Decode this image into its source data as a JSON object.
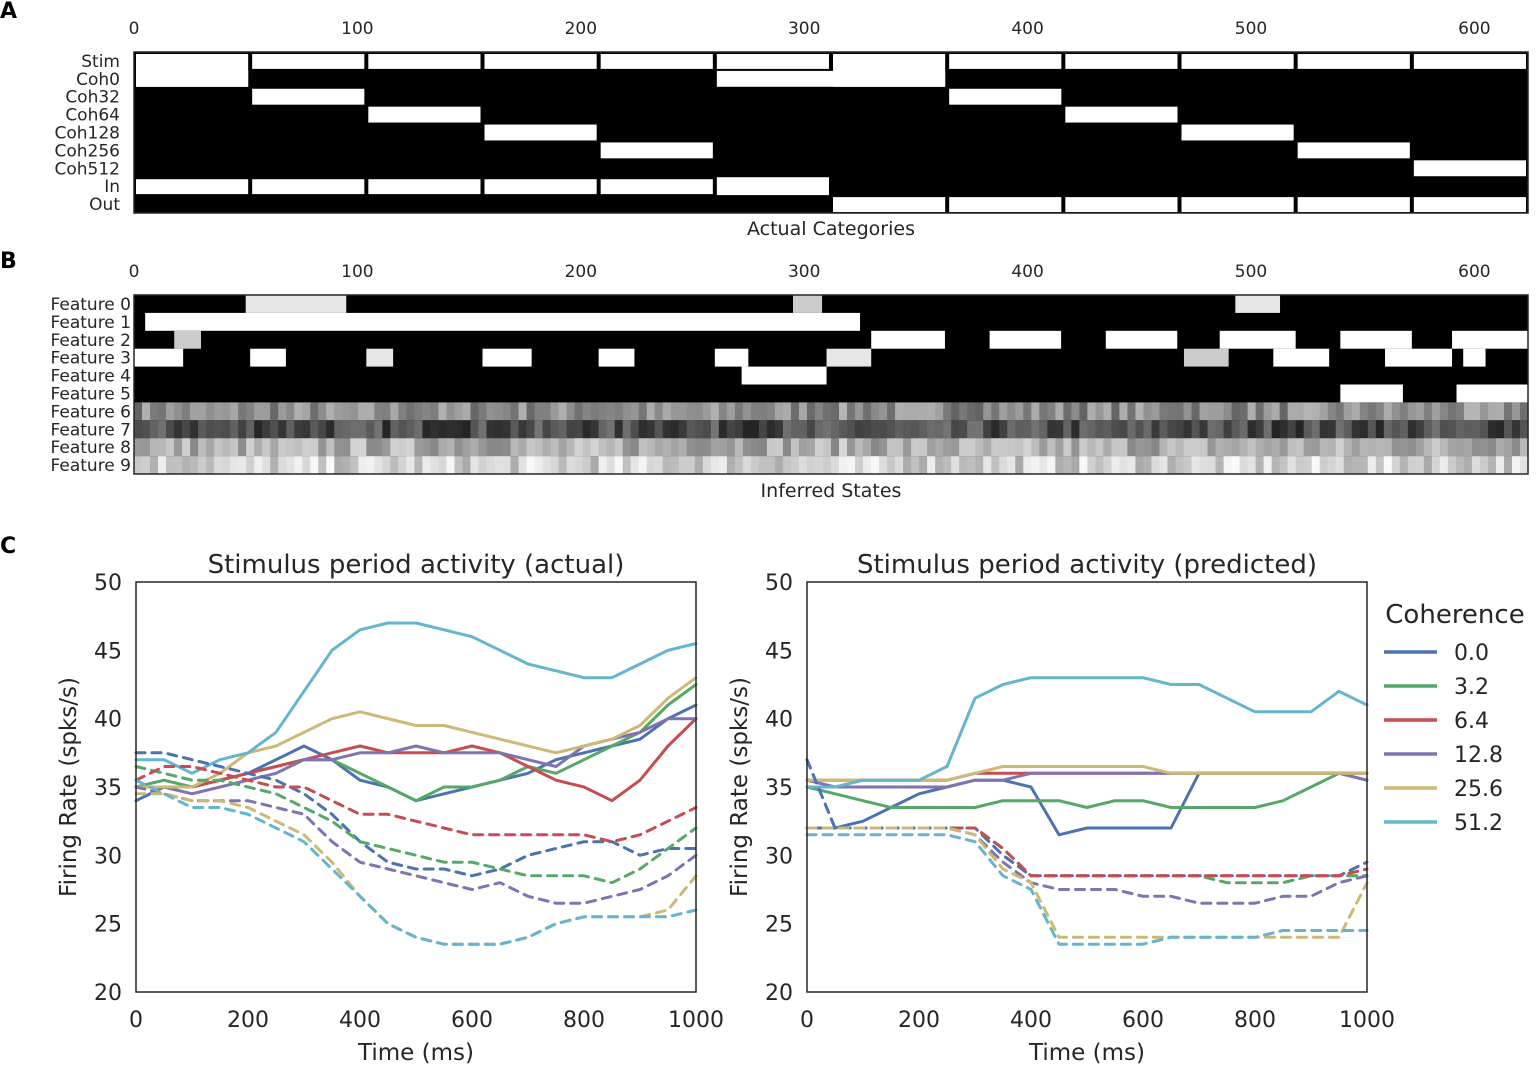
{
  "panel_labels": [
    "A",
    "B",
    "C"
  ],
  "chart_data": [
    {
      "type": "heatmap",
      "panel": "A",
      "xlabel": "Actual Categories",
      "xticks": [
        0,
        100,
        200,
        300,
        400,
        500,
        600
      ],
      "xlim": [
        0,
        624
      ],
      "rows": [
        "Stim",
        "Coh0",
        "Coh32",
        "Coh64",
        "Coh128",
        "Coh256",
        "Coh512",
        "In",
        "Out"
      ],
      "trial_boundaries": [
        0,
        52,
        104,
        156,
        208,
        260,
        312,
        364,
        416,
        468,
        520,
        572,
        624
      ],
      "trial_coherence_row": [
        1,
        2,
        3,
        4,
        5,
        1,
        2,
        3,
        4,
        5,
        6
      ],
      "trial_boundaries_coherence": [
        0,
        52,
        104,
        156,
        208,
        260,
        364,
        416,
        468,
        520,
        572,
        624
      ],
      "in_until": 312
    },
    {
      "type": "heatmap",
      "panel": "B",
      "xlabel": "Inferred States",
      "xticks": [
        0,
        100,
        200,
        300,
        400,
        500,
        600
      ],
      "xlim": [
        0,
        624
      ],
      "rows": [
        "Feature 0",
        "Feature 1",
        "Feature 2",
        "Feature 3",
        "Feature 4",
        "Feature 5",
        "Feature 6",
        "Feature 7",
        "Feature 8",
        "Feature 9"
      ],
      "active_segments": [
        [
          [
            50,
            95,
            0.9
          ],
          [
            295,
            308,
            0.8
          ],
          [
            493,
            513,
            0.9
          ]
        ],
        [
          [
            5,
            325,
            1.0
          ]
        ],
        [
          [
            18,
            30,
            0.8
          ],
          [
            330,
            363,
            1.0
          ],
          [
            383,
            415,
            1.0
          ],
          [
            435,
            467,
            1.0
          ],
          [
            486,
            520,
            1.0
          ],
          [
            540,
            572,
            1.0
          ],
          [
            590,
            624,
            1.0
          ]
        ],
        [
          [
            0,
            22,
            1.0
          ],
          [
            52,
            68,
            1.0
          ],
          [
            104,
            116,
            0.9
          ],
          [
            156,
            178,
            1.0
          ],
          [
            208,
            224,
            1.0
          ],
          [
            260,
            275,
            1.0
          ],
          [
            310,
            330,
            0.9
          ],
          [
            470,
            490,
            0.8
          ],
          [
            510,
            535,
            1.0
          ],
          [
            560,
            590,
            1.0
          ],
          [
            595,
            605,
            1.0
          ]
        ],
        [
          [
            272,
            310,
            1.0
          ]
        ],
        [
          [
            540,
            568,
            1.0
          ],
          [
            592,
            624,
            1.0
          ]
        ]
      ],
      "noisy_row_means": [
        0.55,
        0.3,
        0.68,
        0.82
      ]
    },
    {
      "type": "line",
      "panel": "C-left",
      "title": "Stimulus period activity (actual)",
      "xlabel": "Time (ms)",
      "ylabel": "Firing Rate (spks/s)",
      "xlim": [
        0,
        1000
      ],
      "ylim": [
        20,
        50
      ],
      "xticks": [
        0,
        200,
        400,
        600,
        800,
        1000
      ],
      "yticks": [
        20,
        25,
        30,
        35,
        40,
        45,
        50
      ],
      "x": [
        0,
        50,
        100,
        150,
        200,
        250,
        300,
        350,
        400,
        450,
        500,
        550,
        600,
        650,
        700,
        750,
        800,
        850,
        900,
        950,
        1000
      ],
      "series": [
        {
          "name": "0.0",
          "color": "#4C72B0",
          "style": "solid",
          "values": [
            34,
            35,
            35,
            35.5,
            36,
            37,
            38,
            37,
            35.5,
            35,
            34,
            34.5,
            35,
            35.5,
            36,
            37,
            37.5,
            38,
            38.5,
            40,
            41
          ]
        },
        {
          "name": "3.2",
          "color": "#55A868",
          "style": "solid",
          "values": [
            35,
            35.5,
            35,
            35.5,
            36,
            36.5,
            37,
            37,
            36,
            35,
            34,
            35,
            35,
            35.5,
            36.5,
            36,
            37,
            38,
            39,
            41,
            42.5
          ]
        },
        {
          "name": "6.4",
          "color": "#C44E52",
          "style": "solid",
          "values": [
            35,
            35,
            35,
            35.5,
            36,
            36.5,
            37,
            37.5,
            38,
            37.5,
            37.5,
            37.5,
            38,
            37.5,
            36.5,
            35.5,
            35,
            34,
            35.5,
            38,
            40
          ]
        },
        {
          "name": "12.8",
          "color": "#8172B2",
          "style": "solid",
          "values": [
            35,
            35,
            34.5,
            35,
            35.5,
            36,
            37,
            37,
            37.5,
            37.5,
            38,
            37.5,
            37.5,
            37.5,
            37,
            36.5,
            38,
            38.5,
            39,
            40,
            40
          ]
        },
        {
          "name": "25.6",
          "color": "#CCB974",
          "style": "solid",
          "values": [
            35,
            35,
            35,
            36,
            37.5,
            38,
            39,
            40,
            40.5,
            40,
            39.5,
            39.5,
            39,
            38.5,
            38,
            37.5,
            38,
            38.5,
            39.5,
            41.5,
            43
          ]
        },
        {
          "name": "51.2",
          "color": "#64B5CD",
          "style": "solid",
          "values": [
            37,
            37,
            36,
            37,
            37.5,
            39,
            42,
            45,
            46.5,
            47,
            47,
            46.5,
            46,
            45,
            44,
            43.5,
            43,
            43,
            44,
            45,
            45.5
          ]
        },
        {
          "name": "0.0",
          "color": "#4C72B0",
          "style": "dashed",
          "values": [
            37.5,
            37.5,
            37,
            36.5,
            36,
            35.5,
            34.5,
            33,
            31,
            29.5,
            29,
            29,
            28.5,
            29,
            30,
            30.5,
            31,
            31,
            30,
            30.5,
            30.5
          ]
        },
        {
          "name": "3.2",
          "color": "#55A868",
          "style": "dashed",
          "values": [
            36.5,
            36,
            35.5,
            35.5,
            35,
            34.5,
            33.5,
            32.5,
            31,
            30.5,
            30,
            29.5,
            29.5,
            29,
            28.5,
            28.5,
            28.5,
            28,
            29,
            30.5,
            32
          ]
        },
        {
          "name": "6.4",
          "color": "#C44E52",
          "style": "dashed",
          "values": [
            35.5,
            36.5,
            36.5,
            36,
            35.5,
            35,
            35,
            34,
            33,
            33,
            32.5,
            32,
            31.5,
            31.5,
            31.5,
            31.5,
            31.5,
            31,
            31.5,
            32.5,
            33.5
          ]
        },
        {
          "name": "12.8",
          "color": "#8172B2",
          "style": "dashed",
          "values": [
            35,
            34.5,
            34,
            34,
            34,
            33.5,
            33,
            31,
            29.5,
            29,
            28.5,
            28,
            27.5,
            28,
            27,
            26.5,
            26.5,
            27,
            27.5,
            28.5,
            30
          ]
        },
        {
          "name": "25.6",
          "color": "#CCB974",
          "style": "dashed",
          "values": [
            34.5,
            34.5,
            34,
            34,
            33.5,
            32.5,
            31.5,
            29.5,
            27,
            25,
            24,
            23.5,
            23.5,
            23.5,
            24,
            25,
            25.5,
            25.5,
            25.5,
            26,
            28.5
          ]
        },
        {
          "name": "51.2",
          "color": "#64B5CD",
          "style": "dashed",
          "values": [
            35.5,
            34.5,
            33.5,
            33.5,
            33,
            32,
            31,
            29,
            27,
            25,
            24,
            23.5,
            23.5,
            23.5,
            24,
            25,
            25.5,
            25.5,
            25.5,
            25.5,
            26
          ]
        }
      ]
    },
    {
      "type": "line",
      "panel": "C-right",
      "title": "Stimulus period activity (predicted)",
      "xlabel": "Time (ms)",
      "ylabel": "Firing Rate (spks/s)",
      "xlim": [
        0,
        1000
      ],
      "ylim": [
        20,
        50
      ],
      "xticks": [
        0,
        200,
        400,
        600,
        800,
        1000
      ],
      "yticks": [
        20,
        25,
        30,
        35,
        40,
        45,
        50
      ],
      "x": [
        0,
        50,
        100,
        150,
        200,
        250,
        300,
        350,
        400,
        450,
        500,
        550,
        600,
        650,
        700,
        750,
        800,
        850,
        900,
        950,
        1000
      ],
      "legend_title": "Coherence",
      "legend_position": "right",
      "series": [
        {
          "name": "0.0",
          "color": "#4C72B0",
          "style": "solid",
          "values": [
            32,
            32,
            32.5,
            33.5,
            34.5,
            35,
            35.5,
            35.5,
            35,
            31.5,
            32,
            32,
            32,
            32,
            36,
            36,
            36,
            36,
            36,
            36,
            36
          ]
        },
        {
          "name": "3.2",
          "color": "#55A868",
          "style": "solid",
          "values": [
            35,
            34.5,
            34,
            33.5,
            33.5,
            33.5,
            33.5,
            34,
            34,
            34,
            33.5,
            34,
            34,
            33.5,
            33.5,
            33.5,
            33.5,
            34,
            35,
            36,
            35.5
          ]
        },
        {
          "name": "6.4",
          "color": "#C44E52",
          "style": "solid",
          "values": [
            35.5,
            35.5,
            35.5,
            35.5,
            35.5,
            35.5,
            36,
            36,
            36,
            36,
            36,
            36,
            36,
            36,
            36,
            36,
            36,
            36,
            36,
            36,
            36
          ]
        },
        {
          "name": "12.8",
          "color": "#8172B2",
          "style": "solid",
          "values": [
            35.5,
            35,
            35,
            35,
            35,
            35,
            35.5,
            35.5,
            36,
            36,
            36,
            36,
            36,
            36,
            36,
            36,
            36,
            36,
            36,
            36,
            35.5
          ]
        },
        {
          "name": "25.6",
          "color": "#CCB974",
          "style": "solid",
          "values": [
            35.5,
            35.5,
            35.5,
            35.5,
            35.5,
            35.5,
            36,
            36.5,
            36.5,
            36.5,
            36.5,
            36.5,
            36.5,
            36,
            36,
            36,
            36,
            36,
            36,
            36,
            36
          ]
        },
        {
          "name": "51.2",
          "color": "#64B5CD",
          "style": "solid",
          "values": [
            35,
            35,
            35.5,
            35.5,
            35.5,
            36.5,
            41.5,
            42.5,
            43,
            43,
            43,
            43,
            43,
            42.5,
            42.5,
            41.5,
            40.5,
            40.5,
            40.5,
            42,
            41
          ]
        },
        {
          "name": "0.0",
          "color": "#4C72B0",
          "style": "dashed",
          "values": [
            37,
            32,
            32,
            32,
            32,
            32,
            32,
            30,
            28.5,
            28.5,
            28.5,
            28.5,
            28.5,
            28.5,
            28.5,
            28.5,
            28.5,
            28.5,
            28.5,
            28.5,
            29.5
          ]
        },
        {
          "name": "3.2",
          "color": "#55A868",
          "style": "dashed",
          "values": [
            32,
            32,
            32,
            32,
            32,
            32,
            32,
            30.5,
            28.5,
            28.5,
            28.5,
            28.5,
            28.5,
            28.5,
            28.5,
            28,
            28,
            28,
            28.5,
            28.5,
            28.5
          ]
        },
        {
          "name": "6.4",
          "color": "#C44E52",
          "style": "dashed",
          "values": [
            32,
            32,
            32,
            32,
            32,
            32,
            32,
            30.5,
            28.5,
            28.5,
            28.5,
            28.5,
            28.5,
            28.5,
            28.5,
            28.5,
            28.5,
            28.5,
            28.5,
            28.5,
            29
          ]
        },
        {
          "name": "12.8",
          "color": "#8172B2",
          "style": "dashed",
          "values": [
            32,
            32,
            32,
            32,
            32,
            32,
            31.5,
            29.5,
            28,
            27.5,
            27.5,
            27.5,
            27,
            27,
            26.5,
            26.5,
            26.5,
            27,
            27,
            28,
            28.5
          ]
        },
        {
          "name": "25.6",
          "color": "#CCB974",
          "style": "dashed",
          "values": [
            32,
            32,
            32,
            32,
            32,
            32,
            31.5,
            29,
            28,
            24,
            24,
            24,
            24,
            24,
            24,
            24,
            24,
            24,
            24,
            24,
            28
          ]
        },
        {
          "name": "51.2",
          "color": "#64B5CD",
          "style": "dashed",
          "values": [
            31.5,
            31.5,
            31.5,
            31.5,
            31.5,
            31.5,
            31,
            28.5,
            27.5,
            23.5,
            23.5,
            23.5,
            23.5,
            24,
            24,
            24,
            24,
            24.5,
            24.5,
            24.5,
            24.5
          ]
        }
      ]
    }
  ]
}
